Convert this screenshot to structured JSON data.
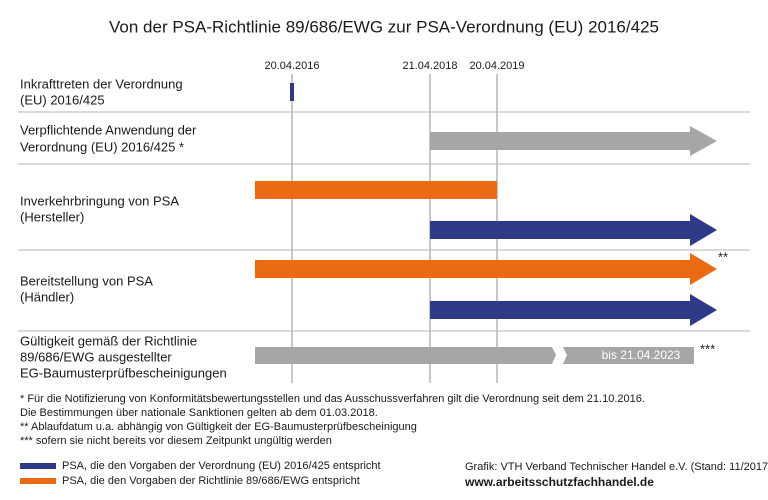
{
  "title": "Von der PSA-Richtlinie 89/686/EWG zur PSA-Verordnung (EU) 2016/425",
  "dates": [
    "20.04.2016",
    "21.04.2018",
    "20.04.2019"
  ],
  "rows": [
    {
      "label": [
        "Inkrafttreten der Verordnung",
        "(EU) 2016/425"
      ]
    },
    {
      "label": [
        "Verpflichtende Anwendung der",
        "Verordnung (EU) 2016/425 *"
      ]
    },
    {
      "label": [
        "Inverkehrbringung von PSA",
        "(Hersteller)"
      ]
    },
    {
      "label": [
        "Bereitstellung von PSA",
        "(Händler)"
      ],
      "annotation": "**"
    },
    {
      "label": [
        "Gültigkeit gemäß der Richtlinie",
        "89/686/EWG ausgestellter",
        "EG-Baumusterprüfbescheinigungen"
      ],
      "bar_label": "bis 21.04.2023",
      "annotation": "***"
    }
  ],
  "footnotes": [
    "* Für die Notifizierung von Konformitätsbewertungsstellen und das Ausschussverfahren gilt die Verordnung seit dem 21.10.2016.",
    "Die Bestimmungen über nationale Sanktionen gelten ab dem 01.03.2018.",
    "** Ablaufdatum u.a. abhängig von Gültigkeit der EG-Baumusterprüfbescheinigung",
    "*** sofern sie nicht bereits vor diesem Zeitpunkt ungültig werden"
  ],
  "legend": [
    {
      "label": "PSA, die den Vorgaben der Verordnung (EU) 2016/425 entspricht",
      "color": "#2e3a87"
    },
    {
      "label": "PSA, die den Vorgaben der Richtlinie 89/686/EWG entspricht",
      "color": "#ec6a12"
    }
  ],
  "credit": "Grafik: VTH Verband Technischer Handel e.V. (Stand: 11/2017)",
  "url": "www.arbeitsschutzfachhandel.de"
}
